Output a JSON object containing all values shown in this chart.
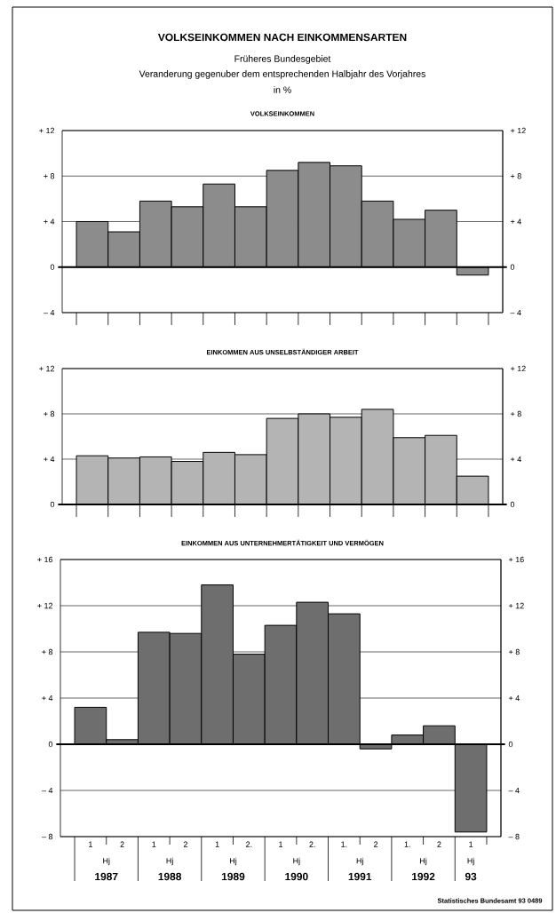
{
  "chart_data": [
    {
      "type": "bar",
      "title": "VOLKSEINKOMMEN NACH EINKOMMENSARTEN",
      "subtitle": "VOLKSEINKOMMEN",
      "annotations": [
        "Früheres Bundesgebiet",
        "Veranderung gegenuber dem entsprechenden Halbjahr des Vorjahres",
        "in %"
      ],
      "categories": [
        null,
        null,
        null,
        null,
        null,
        null,
        null,
        null,
        null,
        null,
        null,
        null,
        null
      ],
      "values": [
        4.0,
        3.1,
        5.8,
        5.3,
        7.3,
        5.3,
        8.5,
        9.2,
        8.9,
        5.8,
        4.2,
        5.0,
        -0.7
      ],
      "color": "#8c8c8c",
      "ylim": [
        -4,
        12
      ],
      "yticks": [
        {
          "value": -4,
          "label": "– 4"
        },
        0,
        {
          "value": 4,
          "label": "+ 4"
        },
        {
          "value": 8,
          "label": "+ 8"
        },
        {
          "value": 12,
          "label": "+ 12"
        }
      ],
      "y2lim": [
        -4,
        12
      ],
      "y2ticks": [
        {
          "value": -4,
          "label": "– 4"
        },
        0,
        {
          "value": 4,
          "label": "+ 4"
        },
        {
          "value": 8,
          "label": "+ 8"
        },
        {
          "value": 12,
          "label": "+ 12"
        }
      ],
      "grid": "y",
      "tick_labels": "y"
    },
    {
      "type": "bar",
      "subtitle": "EINKOMMEN AUS UNSELBSTÄNDIGER ARBEIT",
      "categories": [
        null,
        null,
        null,
        null,
        null,
        null,
        null,
        null,
        null,
        null,
        null,
        null,
        null
      ],
      "values": [
        4.3,
        4.1,
        4.2,
        3.8,
        4.6,
        4.4,
        7.6,
        8.0,
        7.7,
        8.4,
        5.9,
        6.1,
        2.5
      ],
      "color": "#b4b4b4",
      "ylim": [
        0,
        12
      ],
      "yticks": [
        0,
        {
          "value": 4,
          "label": "+ 4"
        },
        {
          "value": 8,
          "label": "+ 8"
        },
        {
          "value": 12,
          "label": "+ 12"
        }
      ],
      "y2lim": [
        0,
        12
      ],
      "y2ticks": [
        0,
        {
          "value": 4,
          "label": "+ 4"
        },
        {
          "value": 8,
          "label": "+ 8"
        },
        {
          "value": 12,
          "label": "+ 12"
        }
      ],
      "grid": "y",
      "tick_labels": "y"
    },
    {
      "type": "bar",
      "subtitle": "EINKOMMEN AUS UNTERNEHMERTÄTIGKEIT UND VERMÖGEN",
      "categories": [
        "1",
        "2",
        "1",
        "2",
        "1",
        "2.",
        "1",
        "2.",
        "1.",
        "2",
        "1.",
        "2",
        "1"
      ],
      "values": [
        3.2,
        0.4,
        9.7,
        9.6,
        13.8,
        7.8,
        10.3,
        12.3,
        11.3,
        -0.4,
        0.8,
        1.6,
        -7.6
      ],
      "color": "#6e6e6e",
      "ylim": [
        -8,
        16
      ],
      "yticks": [
        {
          "value": -8,
          "label": "– 8"
        },
        {
          "value": -4,
          "label": "– 4"
        },
        0,
        {
          "value": 4,
          "label": "+ 4"
        },
        {
          "value": 8,
          "label": "+ 8"
        },
        {
          "value": 12,
          "label": "+ 12"
        },
        {
          "value": 16,
          "label": "+ 16"
        }
      ],
      "y2lim": [
        -8,
        16
      ],
      "y2ticks": [
        {
          "value": -8,
          "label": "– 8"
        },
        {
          "value": -4,
          "label": "– 4"
        },
        0,
        {
          "value": 4,
          "label": "+ 4"
        },
        {
          "value": 8,
          "label": "+ 8"
        },
        {
          "value": 12,
          "label": "+ 12"
        },
        {
          "value": 16,
          "label": "+ 16"
        }
      ],
      "grid": "y",
      "annotations": [
        "Hj",
        "1987",
        "Hj",
        "1988",
        "Hj",
        "1989",
        "Hj",
        "1990",
        "Hj",
        "1991",
        "Hj",
        "1992",
        "Hj",
        "93",
        "Statistisches Bundesamt 93 0489"
      ]
    }
  ]
}
